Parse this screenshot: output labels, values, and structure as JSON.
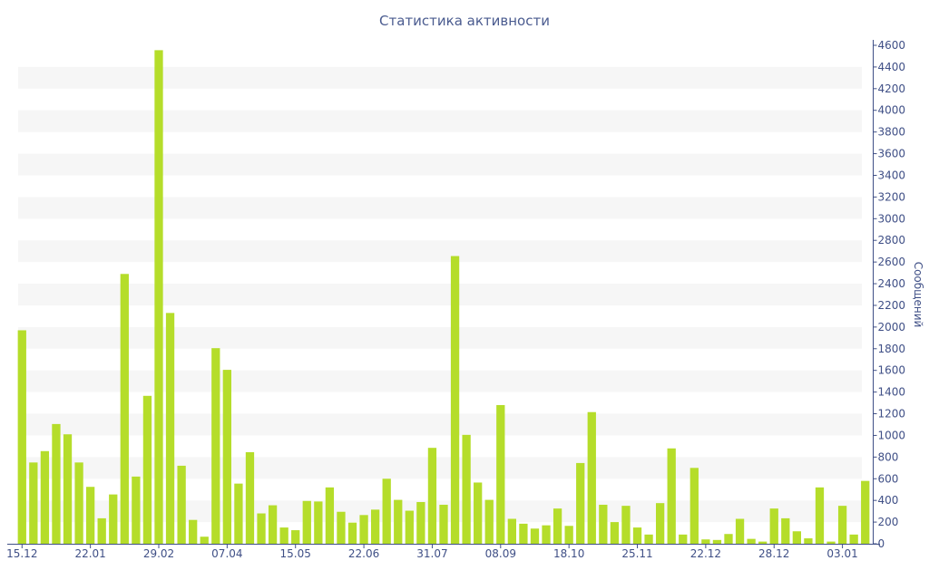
{
  "chart_data": {
    "type": "bar",
    "title": "Статистика активности",
    "xlabel": "",
    "ylabel": "Сообщений",
    "ylim": [
      0,
      4600
    ],
    "y_axis_position": "right",
    "y_ticks": [
      0,
      200,
      400,
      600,
      800,
      1000,
      1200,
      1400,
      1600,
      1800,
      2000,
      2200,
      2400,
      2600,
      2800,
      3000,
      3200,
      3400,
      3600,
      3800,
      4000,
      4200,
      4400,
      4600
    ],
    "x_tick_labels": [
      {
        "index": 0,
        "label": "15.12"
      },
      {
        "index": 6,
        "label": "22.01"
      },
      {
        "index": 12,
        "label": "29.02"
      },
      {
        "index": 18,
        "label": "07.04"
      },
      {
        "index": 24,
        "label": "15.05"
      },
      {
        "index": 30,
        "label": "22.06"
      },
      {
        "index": 36,
        "label": "31.07"
      },
      {
        "index": 42,
        "label": "08.09"
      },
      {
        "index": 48,
        "label": "18.10"
      },
      {
        "index": 54,
        "label": "25.11"
      },
      {
        "index": 60,
        "label": "22.12"
      },
      {
        "index": 66,
        "label": "28.12"
      },
      {
        "index": 72,
        "label": "03.01"
      }
    ],
    "grid": "horizontal alternating bands",
    "bar_color": "#b5dd2a",
    "band_color": "#f6f6f6",
    "axis_color": "#3f4f86",
    "values": [
      1970,
      750,
      855,
      1105,
      1010,
      750,
      525,
      235,
      455,
      2490,
      620,
      1365,
      4555,
      2130,
      720,
      220,
      65,
      1805,
      1605,
      555,
      845,
      280,
      355,
      150,
      125,
      395,
      390,
      520,
      295,
      195,
      265,
      315,
      600,
      405,
      305,
      385,
      885,
      360,
      2655,
      1005,
      565,
      405,
      1280,
      230,
      185,
      140,
      170,
      325,
      165,
      745,
      1215,
      360,
      200,
      350,
      150,
      85,
      375,
      880,
      85,
      700,
      40,
      35,
      90,
      230,
      45,
      20,
      325,
      235,
      115,
      50,
      520,
      20,
      350,
      85,
      580
    ]
  }
}
